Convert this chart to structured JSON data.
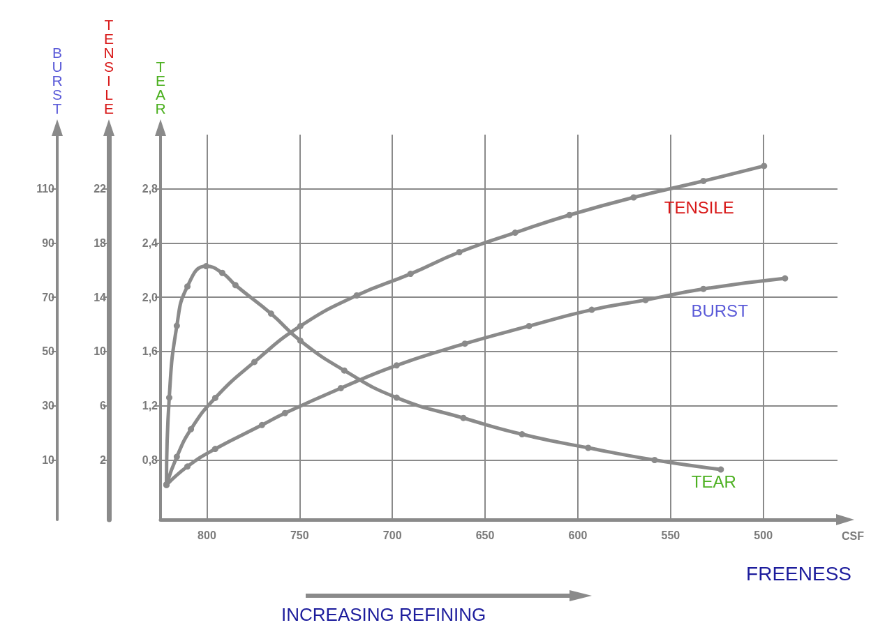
{
  "chart_data": {
    "type": "line",
    "xlabel": "FREENESS",
    "ylabel": "BURST",
    "y2label": "TENSILE",
    "y3label": "TEAR",
    "annotations": [
      "CSF",
      "INCREASING REFINING"
    ],
    "xlim": [
      825,
      460
    ],
    "xticks": [
      800,
      750,
      700,
      650,
      600,
      550,
      500
    ],
    "ylim": [
      -12,
      130
    ],
    "yticks": [
      10,
      30,
      50,
      70,
      90,
      110
    ],
    "y2lim": [
      -2.4,
      26
    ],
    "y2ticks": [
      2,
      6,
      10,
      14,
      18,
      22
    ],
    "y3lim": [
      0.36,
      3.2
    ],
    "y3ticks": [
      {
        "value": 0.8,
        "label": "0,8"
      },
      {
        "value": 1.2,
        "label": "1,2"
      },
      {
        "value": 1.6,
        "label": "1,6"
      },
      {
        "value": 2.0,
        "label": "2,0"
      },
      {
        "value": 2.4,
        "label": "2,4"
      },
      {
        "value": 2.8,
        "label": "2,8"
      }
    ],
    "grid": true,
    "legend": false,
    "marker": "circle",
    "line_style": "solid",
    "series": [
      {
        "name": "TENSILE",
        "color": "#8a8a8a",
        "axis": "y2",
        "x": [
          821.8,
          816.2,
          808.6,
          795.5,
          774.4,
          749.6,
          719.2,
          690.2,
          663.9,
          633.8,
          604.5,
          569.9,
          532.3,
          499.6
        ],
        "values": [
          0.17,
          2.24,
          4.27,
          6.58,
          9.23,
          11.88,
          14.14,
          15.73,
          17.33,
          18.77,
          20.07,
          21.37,
          22.58,
          23.69
        ]
      },
      {
        "name": "BURST",
        "color": "#8a8a8a",
        "x": [
          821.8,
          810.5,
          795.5,
          770.3,
          757.9,
          727.8,
          697.7,
          660.9,
          626.3,
          592.5,
          563.5,
          532.3,
          488.3
        ],
        "values": [
          0.8,
          7.6,
          14.1,
          22.9,
          27.3,
          36.5,
          44.9,
          52.9,
          59.4,
          65.4,
          69.0,
          73.1,
          77.0
        ]
      },
      {
        "name": "TEAR",
        "color": "#8a8a8a",
        "axis": "y3",
        "x": [
          821.8,
          820.3,
          816.2,
          810.5,
          800.4,
          791.7,
          784.6,
          765.4,
          749.6,
          725.9,
          697.7,
          661.7,
          630.1,
          594.4,
          558.6,
          522.9
        ],
        "values": [
          0.62,
          1.26,
          1.79,
          2.08,
          2.23,
          2.18,
          2.09,
          1.88,
          1.68,
          1.46,
          1.26,
          1.11,
          0.99,
          0.89,
          0.8,
          0.73
        ]
      }
    ]
  }
}
